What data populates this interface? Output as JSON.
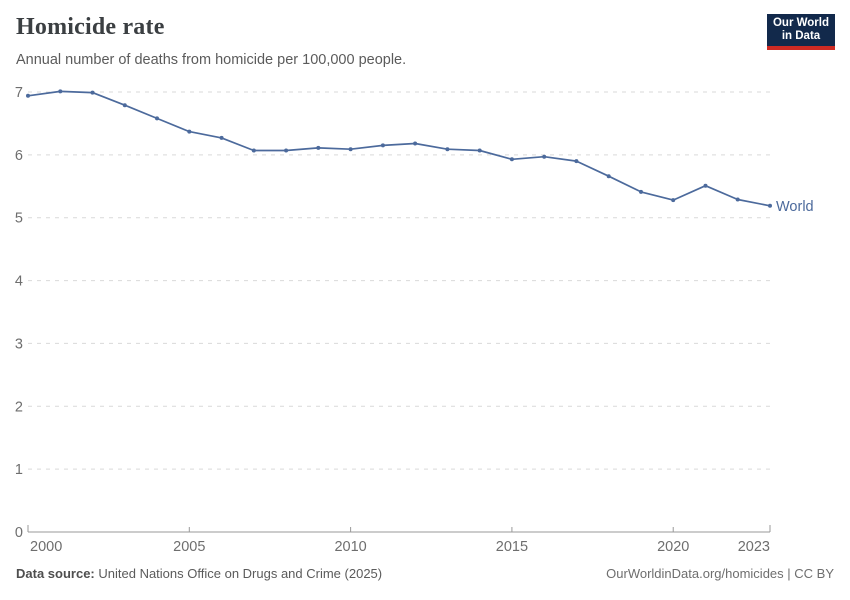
{
  "header": {
    "title": "Homicide rate",
    "subtitle": "Annual number of deaths from homicide per 100,000 people."
  },
  "logo": {
    "line1": "Our World",
    "line2": "in Data",
    "bg_color": "#12294B",
    "accent_color": "#CE2A23"
  },
  "footer": {
    "source_label": "Data source:",
    "source_text": "United Nations Office on Drugs and Crime (2025)",
    "credit": "OurWorldinData.org/homicides | CC BY"
  },
  "colors": {
    "line": "#4C6A9C",
    "grid": "#D9D9D9",
    "axis": "#999999",
    "tick_text": "#6E6E6E",
    "series_label": "#4C6A9C"
  },
  "chart_data": {
    "type": "line",
    "title": "Homicide rate",
    "subtitle": "Annual number of deaths from homicide per 100,000 people.",
    "xlabel": "",
    "ylabel": "Deaths from homicide per 100,000 people",
    "x": [
      2000,
      2001,
      2002,
      2003,
      2004,
      2005,
      2006,
      2007,
      2008,
      2009,
      2010,
      2011,
      2012,
      2013,
      2014,
      2015,
      2016,
      2017,
      2018,
      2019,
      2020,
      2021,
      2022,
      2023
    ],
    "series": [
      {
        "name": "World",
        "values": [
          6.94,
          7.01,
          6.99,
          6.79,
          6.58,
          6.37,
          6.27,
          6.07,
          6.07,
          6.11,
          6.09,
          6.15,
          6.18,
          6.09,
          6.07,
          5.93,
          5.97,
          5.9,
          5.66,
          5.41,
          5.28,
          5.51,
          5.29,
          5.19
        ]
      }
    ],
    "ylim": [
      0,
      7
    ],
    "yticks": [
      0,
      1,
      2,
      3,
      4,
      5,
      6,
      7
    ],
    "xticks": [
      2000,
      2005,
      2010,
      2015,
      2020,
      2023
    ],
    "grid": "horizontal-dashed",
    "legend_position": "end-of-line-label",
    "point_markers": true
  }
}
